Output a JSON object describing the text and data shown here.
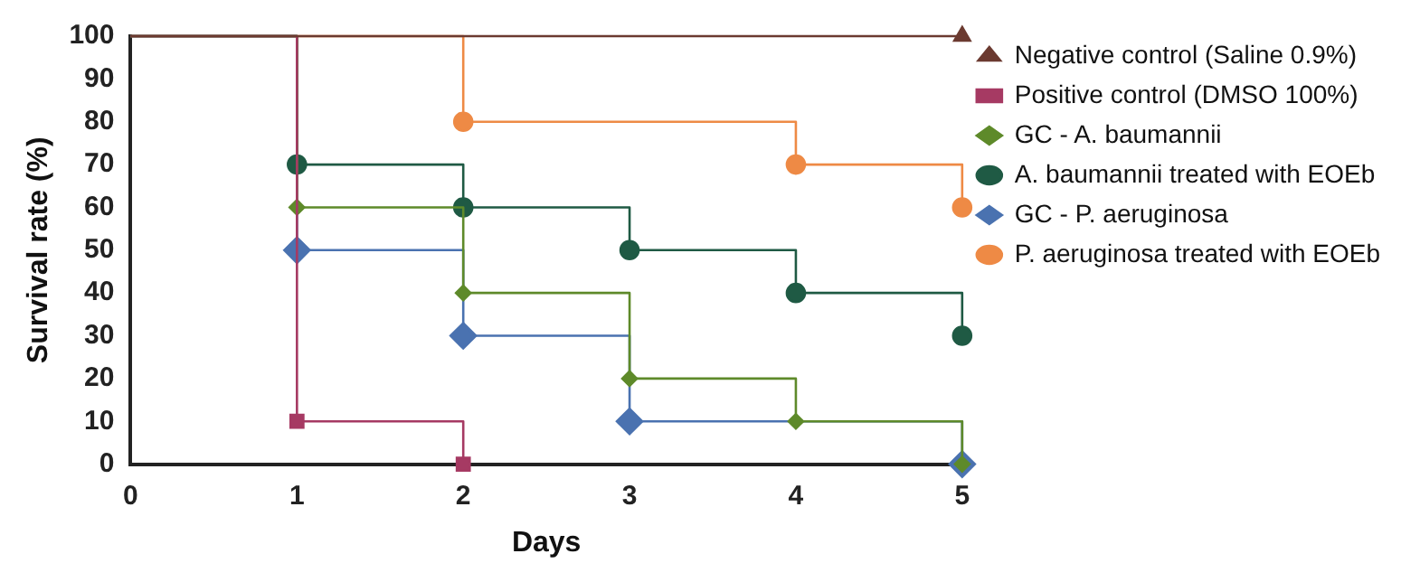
{
  "chart_data": {
    "type": "step",
    "xlabel": "Days",
    "ylabel": "Survival rate (%)",
    "xlim": [
      0,
      5
    ],
    "xticks": [
      0,
      1,
      2,
      3,
      4,
      5
    ],
    "ylim": [
      0,
      100
    ],
    "yticks": [
      0,
      10,
      20,
      30,
      40,
      50,
      60,
      70,
      80,
      90,
      100
    ],
    "grid": false,
    "legend": "right",
    "series": [
      {
        "name": "Negative control (Saline 0.9%)",
        "color": "#6b3a30",
        "marker": "triangle",
        "x": [
          0,
          5
        ],
        "values": [
          100,
          100
        ]
      },
      {
        "name": "Positive control (DMSO 100%)",
        "color": "#a63a63",
        "marker": "square",
        "x": [
          0,
          1,
          2
        ],
        "values": [
          100,
          10,
          0
        ]
      },
      {
        "name": "GC - A. baumannii",
        "color": "#5e8a2a",
        "marker": "diamond",
        "x": [
          0,
          1,
          2,
          3,
          4,
          5
        ],
        "values": [
          100,
          60,
          40,
          20,
          10,
          0
        ]
      },
      {
        "name": "A. baumannii treated with EOEb",
        "color": "#1f5a44",
        "marker": "circle",
        "x": [
          0,
          1,
          2,
          3,
          4,
          5
        ],
        "values": [
          100,
          70,
          60,
          50,
          40,
          30
        ]
      },
      {
        "name": "GC - P. aeruginosa",
        "color": "#4a72b0",
        "marker": "diamond",
        "x": [
          0,
          1,
          2,
          3,
          5
        ],
        "values": [
          100,
          50,
          30,
          10,
          0
        ]
      },
      {
        "name": "P. aeruginosa treated with EOEb",
        "color": "#ee8a45",
        "marker": "circle",
        "x": [
          0,
          2,
          4,
          5
        ],
        "values": [
          100,
          80,
          70,
          60
        ]
      }
    ]
  }
}
